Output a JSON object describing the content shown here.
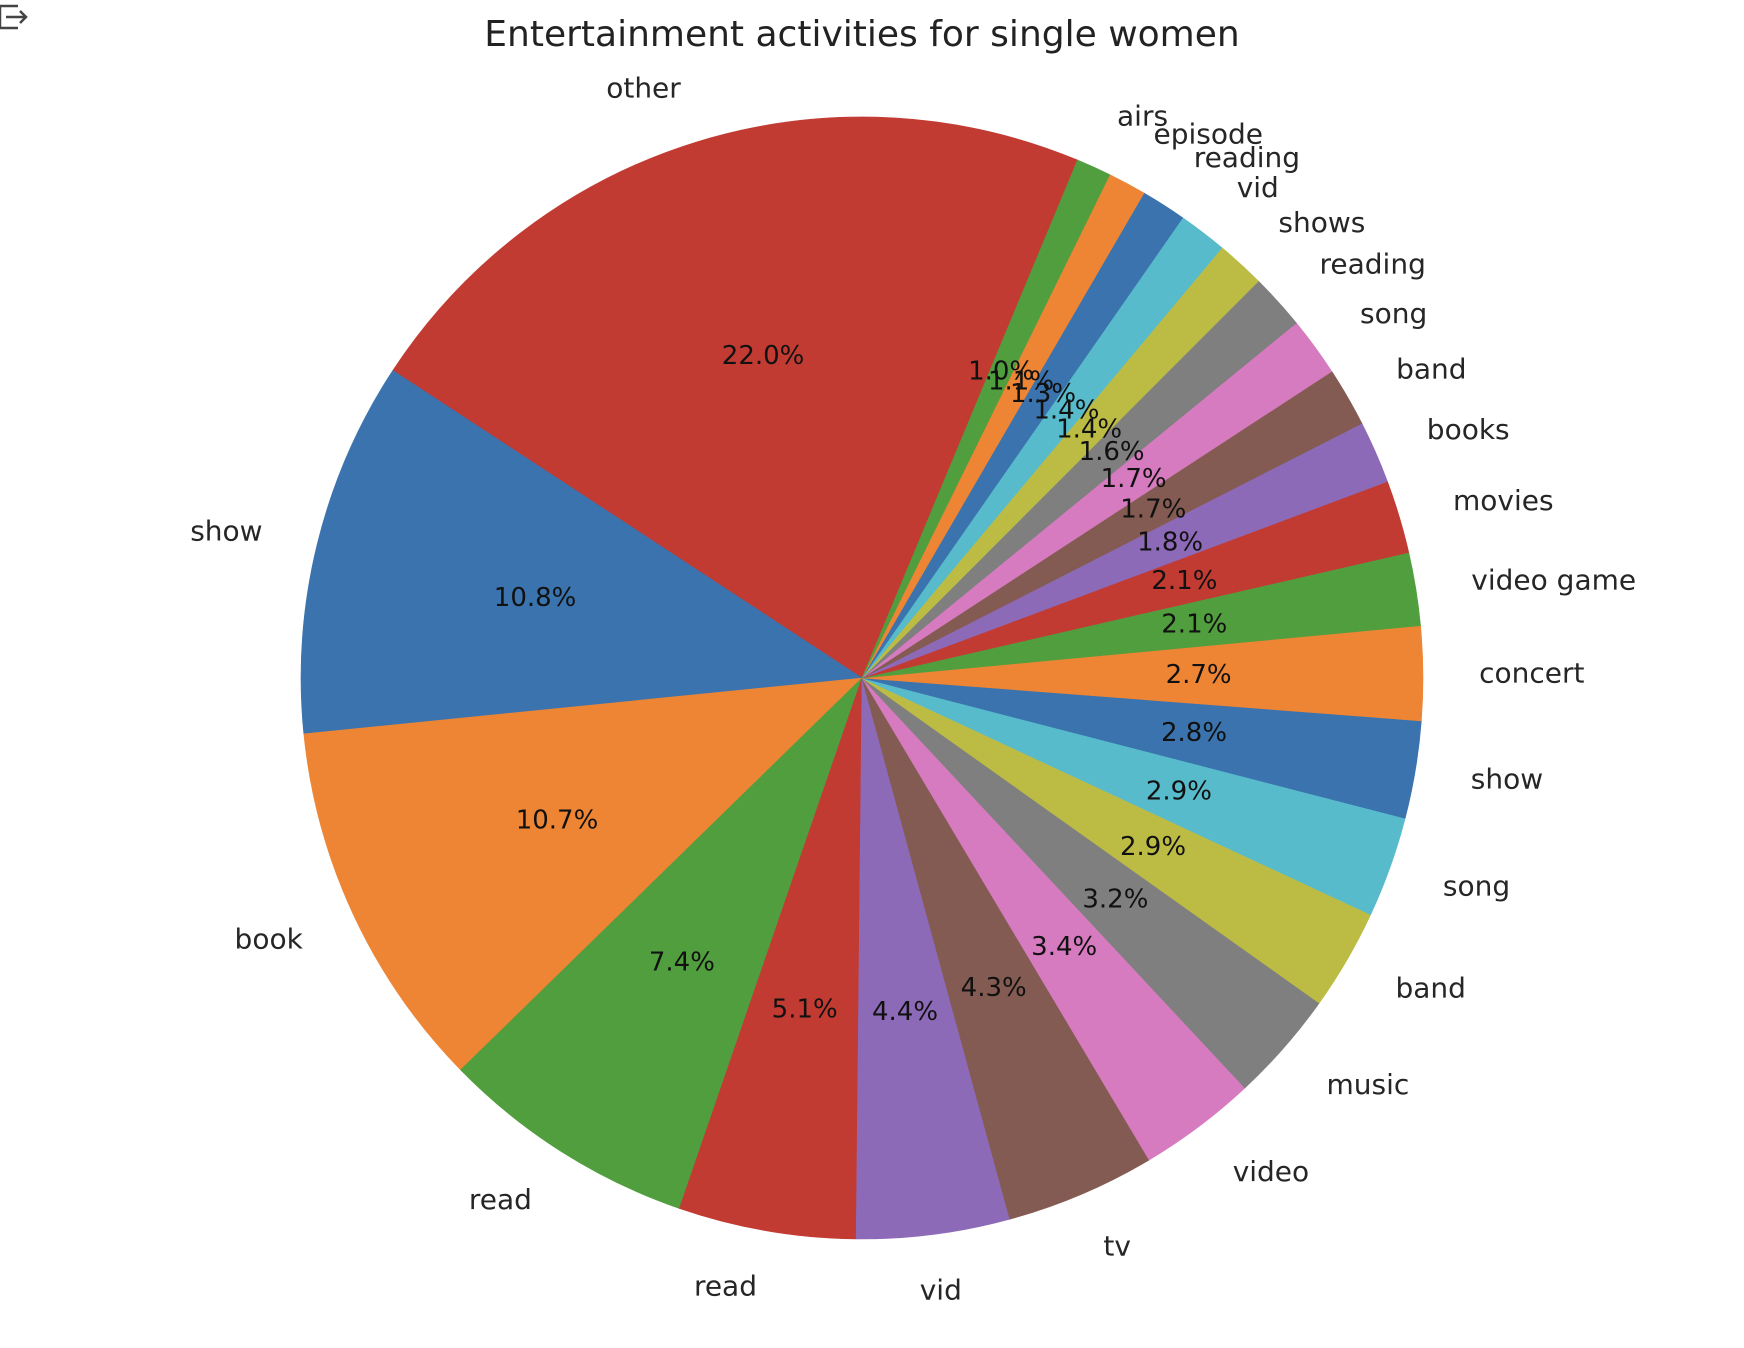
{
  "chart_data": {
    "type": "pie",
    "title": "Entertainment activities for single women",
    "labels": [
      "other",
      "show",
      "book",
      "read",
      "read",
      "vid",
      "tv",
      "video",
      "music",
      "band",
      "song",
      "show",
      "concert",
      "video game",
      "movies",
      "books",
      "band",
      "song",
      "reading",
      "shows",
      "vid",
      "reading",
      "episode",
      "airs"
    ],
    "values": [
      22.0,
      10.8,
      10.7,
      7.4,
      5.1,
      4.4,
      4.3,
      3.4,
      3.2,
      2.9,
      2.9,
      2.8,
      2.7,
      2.1,
      2.1,
      1.8,
      1.7,
      1.7,
      1.6,
      1.4,
      1.4,
      1.3,
      1.1,
      1.0
    ],
    "pct_labels": [
      "22.0%",
      "10.8%",
      "10.7%",
      "7.4%",
      "5.1%",
      "4.4%",
      "4.3%",
      "3.4%",
      "3.2%",
      "2.9%",
      "2.9%",
      "2.8%",
      "2.7%",
      "2.1%",
      "2.1%",
      "1.8%",
      "1.7%",
      "1.7%",
      "1.6%",
      "1.4%",
      "1.4%",
      "1.3%",
      "1.1%",
      "1.0%"
    ],
    "start_angle_deg": 67.4,
    "direction": "counterclockwise",
    "colors": [
      "#c23b33",
      "#3a73ad",
      "#ed8535",
      "#519e3e",
      "#c23b33",
      "#8d6ab8",
      "#845b52",
      "#d67bbf",
      "#7f7f7f",
      "#bcbc45",
      "#58bbcc",
      "#3a73ad",
      "#ed8535",
      "#519e3e",
      "#c23b33",
      "#8d6ab8",
      "#845b52",
      "#d67bbf",
      "#7f7f7f",
      "#bcbc45",
      "#58bbcc",
      "#3a73ad",
      "#ed8535",
      "#519e3e"
    ]
  },
  "icons": {
    "output": "output-arrow-icon"
  }
}
